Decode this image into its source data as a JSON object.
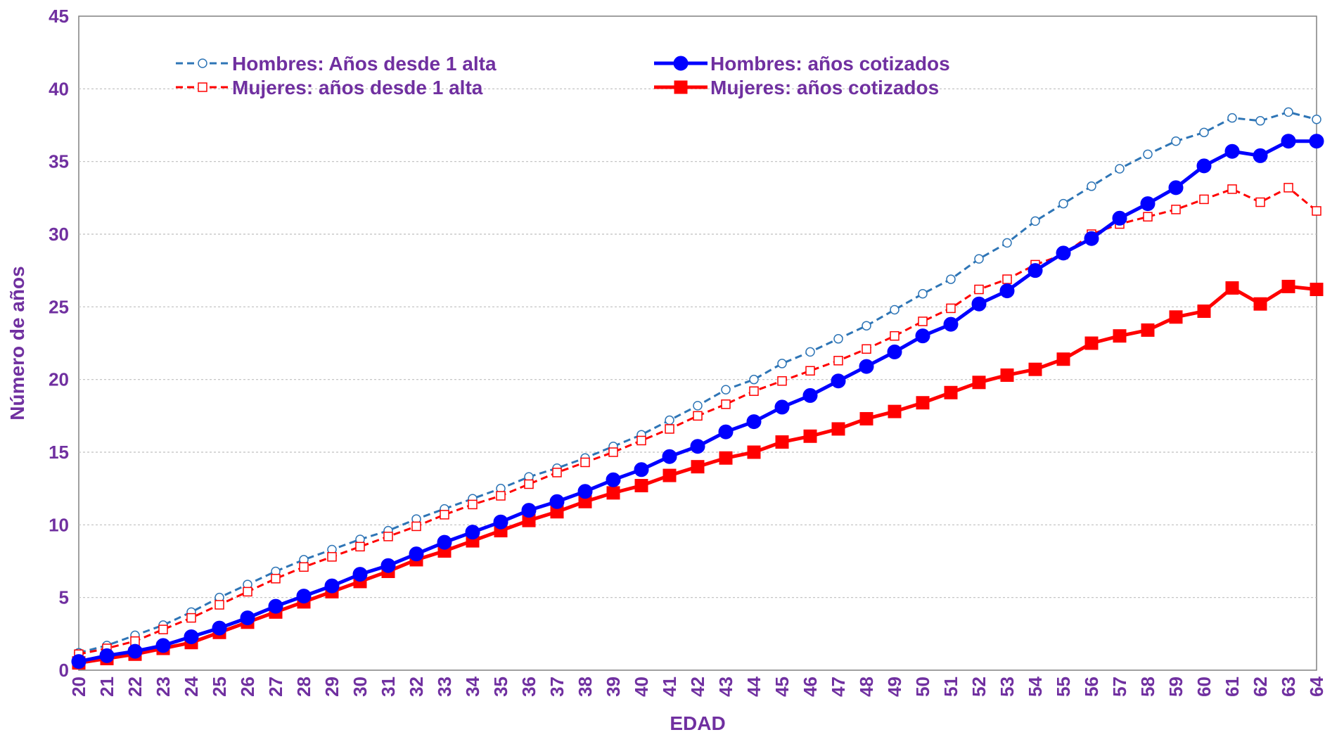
{
  "chart_data": {
    "type": "line",
    "xlabel": "EDAD",
    "ylabel": "Número de años",
    "ylim": [
      0,
      45
    ],
    "yticks": [
      0,
      5,
      10,
      15,
      20,
      25,
      30,
      35,
      40,
      45
    ],
    "grid": "horizontal dotted",
    "legend_position": "top, two columns",
    "x": [
      20,
      21,
      22,
      23,
      24,
      25,
      26,
      27,
      28,
      29,
      30,
      31,
      32,
      33,
      34,
      35,
      36,
      37,
      38,
      39,
      40,
      41,
      42,
      43,
      44,
      45,
      46,
      47,
      48,
      49,
      50,
      51,
      52,
      53,
      54,
      55,
      56,
      57,
      58,
      59,
      60,
      61,
      62,
      63,
      64
    ],
    "series": [
      {
        "name": "Hombres: Años desde 1 alta",
        "color": "#2E75B6",
        "style": "dashed",
        "marker": "open-circle",
        "values": [
          1.2,
          1.7,
          2.4,
          3.1,
          4.0,
          5.0,
          5.9,
          6.8,
          7.6,
          8.3,
          9.0,
          9.6,
          10.4,
          11.1,
          11.8,
          12.5,
          13.3,
          13.9,
          14.6,
          15.4,
          16.2,
          17.2,
          18.2,
          19.3,
          20.0,
          21.1,
          21.9,
          22.8,
          23.7,
          24.8,
          25.9,
          26.9,
          28.3,
          29.4,
          30.9,
          32.1,
          33.3,
          34.5,
          35.5,
          36.4,
          37.0,
          38.0,
          37.8,
          38.4,
          37.9
        ]
      },
      {
        "name": "Hombres: años cotizados",
        "color": "#0000FF",
        "style": "solid",
        "marker": "filled-circle",
        "values": [
          0.6,
          1.0,
          1.3,
          1.7,
          2.3,
          2.9,
          3.6,
          4.4,
          5.1,
          5.8,
          6.6,
          7.2,
          8.0,
          8.8,
          9.5,
          10.2,
          11.0,
          11.6,
          12.3,
          13.1,
          13.8,
          14.7,
          15.4,
          16.4,
          17.1,
          18.1,
          18.9,
          19.9,
          20.9,
          21.9,
          23.0,
          23.8,
          25.2,
          26.1,
          27.5,
          28.7,
          29.7,
          31.1,
          32.1,
          33.2,
          34.7,
          35.7,
          35.4,
          36.4,
          36.4
        ]
      },
      {
        "name": "Mujeres: años desde 1 alta",
        "color": "#FF0000",
        "style": "dashed",
        "marker": "open-square",
        "values": [
          1.1,
          1.5,
          2.0,
          2.8,
          3.6,
          4.5,
          5.4,
          6.3,
          7.1,
          7.8,
          8.5,
          9.2,
          9.9,
          10.7,
          11.4,
          12.0,
          12.8,
          13.6,
          14.3,
          15.0,
          15.8,
          16.6,
          17.5,
          18.3,
          19.2,
          19.9,
          20.6,
          21.3,
          22.1,
          23.0,
          24.0,
          24.9,
          26.2,
          26.9,
          27.9,
          28.6,
          30.0,
          30.7,
          31.2,
          31.7,
          32.4,
          33.1,
          32.2,
          33.2,
          31.6
        ]
      },
      {
        "name": "Mujeres: años cotizados",
        "color": "#FF0000",
        "style": "solid",
        "marker": "filled-square",
        "values": [
          0.5,
          0.8,
          1.1,
          1.5,
          1.9,
          2.6,
          3.3,
          4.0,
          4.7,
          5.4,
          6.1,
          6.8,
          7.6,
          8.2,
          8.9,
          9.6,
          10.3,
          10.9,
          11.6,
          12.2,
          12.7,
          13.4,
          14.0,
          14.6,
          15.0,
          15.7,
          16.1,
          16.6,
          17.3,
          17.8,
          18.4,
          19.1,
          19.8,
          20.3,
          20.7,
          21.4,
          22.5,
          23.0,
          23.4,
          24.3,
          24.7,
          26.3,
          25.2,
          26.4,
          26.2
        ]
      }
    ]
  }
}
